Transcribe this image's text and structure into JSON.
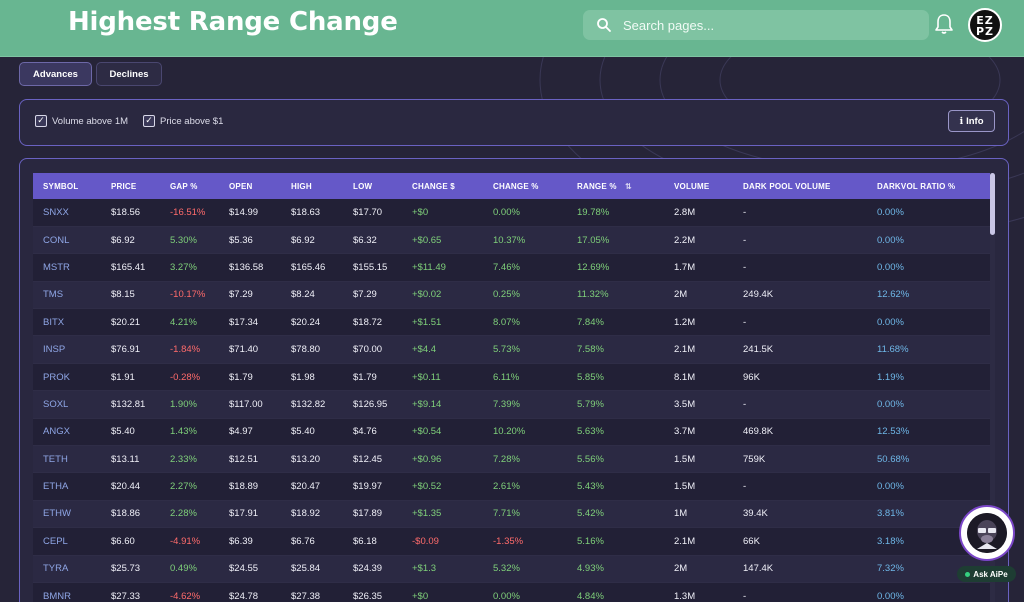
{
  "header": {
    "title": "Highest Range Change",
    "search_placeholder": "Search pages...",
    "avatar_text": "EZPZ",
    "bar_color": "#68b691"
  },
  "tabs": [
    {
      "label": "Advances",
      "active": true
    },
    {
      "label": "Declines",
      "active": false
    }
  ],
  "filters": [
    {
      "label": "Volume above 1M",
      "checked": true
    },
    {
      "label": "Price above $1",
      "checked": true
    }
  ],
  "info_label": "Info",
  "table": {
    "columns": [
      "SYMBOL",
      "PRICE",
      "GAP %",
      "OPEN",
      "HIGH",
      "LOW",
      "CHANGE $",
      "CHANGE %",
      "RANGE %",
      "VOLUME",
      "DARK POOL VOLUME",
      "DARKVOL RATIO %"
    ],
    "sorted_column": "RANGE %",
    "rows": [
      [
        "SNXX",
        "$18.56",
        "-16.51%",
        "$14.99",
        "$18.63",
        "$17.70",
        "+$0",
        "0.00%",
        "19.78%",
        "2.8M",
        "-",
        "0.00%"
      ],
      [
        "CONL",
        "$6.92",
        "5.30%",
        "$5.36",
        "$6.92",
        "$6.32",
        "+$0.65",
        "10.37%",
        "17.05%",
        "2.2M",
        "-",
        "0.00%"
      ],
      [
        "MSTR",
        "$165.41",
        "3.27%",
        "$136.58",
        "$165.46",
        "$155.15",
        "+$11.49",
        "7.46%",
        "12.69%",
        "1.7M",
        "-",
        "0.00%"
      ],
      [
        "TMS",
        "$8.15",
        "-10.17%",
        "$7.29",
        "$8.24",
        "$7.29",
        "+$0.02",
        "0.25%",
        "11.32%",
        "2M",
        "249.4K",
        "12.62%"
      ],
      [
        "BITX",
        "$20.21",
        "4.21%",
        "$17.34",
        "$20.24",
        "$18.72",
        "+$1.51",
        "8.07%",
        "7.84%",
        "1.2M",
        "-",
        "0.00%"
      ],
      [
        "INSP",
        "$76.91",
        "-1.84%",
        "$71.40",
        "$78.80",
        "$70.00",
        "+$4.4",
        "5.73%",
        "7.58%",
        "2.1M",
        "241.5K",
        "11.68%"
      ],
      [
        "PROK",
        "$1.91",
        "-0.28%",
        "$1.79",
        "$1.98",
        "$1.79",
        "+$0.11",
        "6.11%",
        "5.85%",
        "8.1M",
        "96K",
        "1.19%"
      ],
      [
        "SOXL",
        "$132.81",
        "1.90%",
        "$117.00",
        "$132.82",
        "$126.95",
        "+$9.14",
        "7.39%",
        "5.79%",
        "3.5M",
        "-",
        "0.00%"
      ],
      [
        "ANGX",
        "$5.40",
        "1.43%",
        "$4.97",
        "$5.40",
        "$4.76",
        "+$0.54",
        "10.20%",
        "5.63%",
        "3.7M",
        "469.8K",
        "12.53%"
      ],
      [
        "TETH",
        "$13.11",
        "2.33%",
        "$12.51",
        "$13.20",
        "$12.45",
        "+$0.96",
        "7.28%",
        "5.56%",
        "1.5M",
        "759K",
        "50.68%"
      ],
      [
        "ETHA",
        "$20.44",
        "2.27%",
        "$18.89",
        "$20.47",
        "$19.97",
        "+$0.52",
        "2.61%",
        "5.43%",
        "1.5M",
        "-",
        "0.00%"
      ],
      [
        "ETHW",
        "$18.86",
        "2.28%",
        "$17.91",
        "$18.92",
        "$17.89",
        "+$1.35",
        "7.71%",
        "5.42%",
        "1M",
        "39.4K",
        "3.81%"
      ],
      [
        "CEPL",
        "$6.60",
        "-4.91%",
        "$6.39",
        "$6.76",
        "$6.18",
        "-$0.09",
        "-1.35%",
        "5.16%",
        "2.1M",
        "66K",
        "3.18%"
      ],
      [
        "TYRA",
        "$25.73",
        "0.49%",
        "$24.55",
        "$25.84",
        "$24.39",
        "+$1.3",
        "5.32%",
        "4.93%",
        "2M",
        "147.4K",
        "7.32%"
      ],
      [
        "BMNR",
        "$27.33",
        "-4.62%",
        "$24.78",
        "$27.38",
        "$26.35",
        "+$0",
        "0.00%",
        "4.84%",
        "1.3M",
        "-",
        "0.00%"
      ]
    ]
  },
  "assistant": {
    "label": "Ask AiPe"
  },
  "colors": {
    "positive": "#7fd07a",
    "negative": "#ff6b6b",
    "header": "#6558c8",
    "accent": "#6a62c2",
    "ratio": "#6fb7e8"
  }
}
